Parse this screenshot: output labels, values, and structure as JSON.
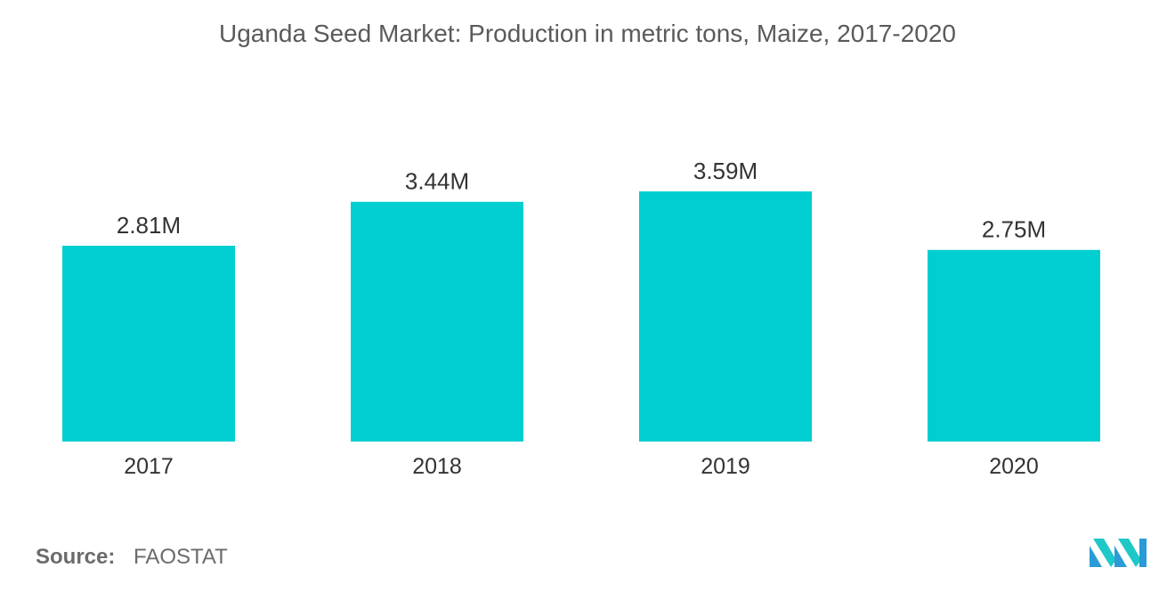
{
  "chart_data": {
    "type": "bar",
    "title": "Uganda Seed Market: Production in metric tons, Maize, 2017-2020",
    "categories": [
      "2017",
      "2018",
      "2019",
      "2020"
    ],
    "values": [
      2.81,
      3.44,
      3.59,
      2.75
    ],
    "value_labels": [
      "2.81M",
      "3.44M",
      "3.59M",
      "2.75M"
    ],
    "unit": "M",
    "ylim": [
      0,
      3.59
    ],
    "grid": false,
    "legend": "none",
    "bar_color": "#00CED1"
  },
  "source": {
    "label": "Source:",
    "value": "FAOSTAT"
  },
  "logo": {
    "icon": "mordor-logo-icon",
    "colors": [
      "#2a9bd6",
      "#1ec8c8"
    ]
  }
}
